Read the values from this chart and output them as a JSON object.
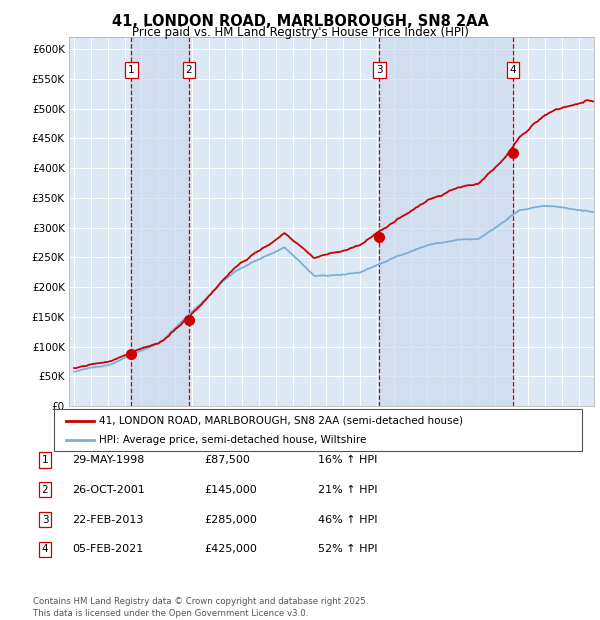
{
  "title": "41, LONDON ROAD, MARLBOROUGH, SN8 2AA",
  "subtitle": "Price paid vs. HM Land Registry's House Price Index (HPI)",
  "plot_bg": "#dce9f5",
  "grid_color": "#ffffff",
  "sale_dates_num": [
    1998.41,
    2001.82,
    2013.14,
    2021.09
  ],
  "sale_prices": [
    87500,
    145000,
    285000,
    425000
  ],
  "sale_labels": [
    "1",
    "2",
    "3",
    "4"
  ],
  "legend_property": "41, LONDON ROAD, MARLBOROUGH, SN8 2AA (semi-detached house)",
  "legend_hpi": "HPI: Average price, semi-detached house, Wiltshire",
  "table_entries": [
    {
      "num": "1",
      "date": "29-MAY-1998",
      "price": "£87,500",
      "change": "16% ↑ HPI"
    },
    {
      "num": "2",
      "date": "26-OCT-2001",
      "price": "£145,000",
      "change": "21% ↑ HPI"
    },
    {
      "num": "3",
      "date": "22-FEB-2013",
      "price": "£285,000",
      "change": "46% ↑ HPI"
    },
    {
      "num": "4",
      "date": "05-FEB-2021",
      "price": "£425,000",
      "change": "52% ↑ HPI"
    }
  ],
  "footer": "Contains HM Land Registry data © Crown copyright and database right 2025.\nThis data is licensed under the Open Government Licence v3.0.",
  "property_line_color": "#cc0000",
  "hpi_line_color": "#7bafd4",
  "sale_marker_color": "#cc0000",
  "vline_color": "#cc0000",
  "vspan_color": "#c8d8ed",
  "ylim": [
    0,
    620000
  ],
  "yticks": [
    0,
    50000,
    100000,
    150000,
    200000,
    250000,
    300000,
    350000,
    400000,
    450000,
    500000,
    550000,
    600000
  ],
  "xlim_start": 1994.7,
  "xlim_end": 2025.9
}
